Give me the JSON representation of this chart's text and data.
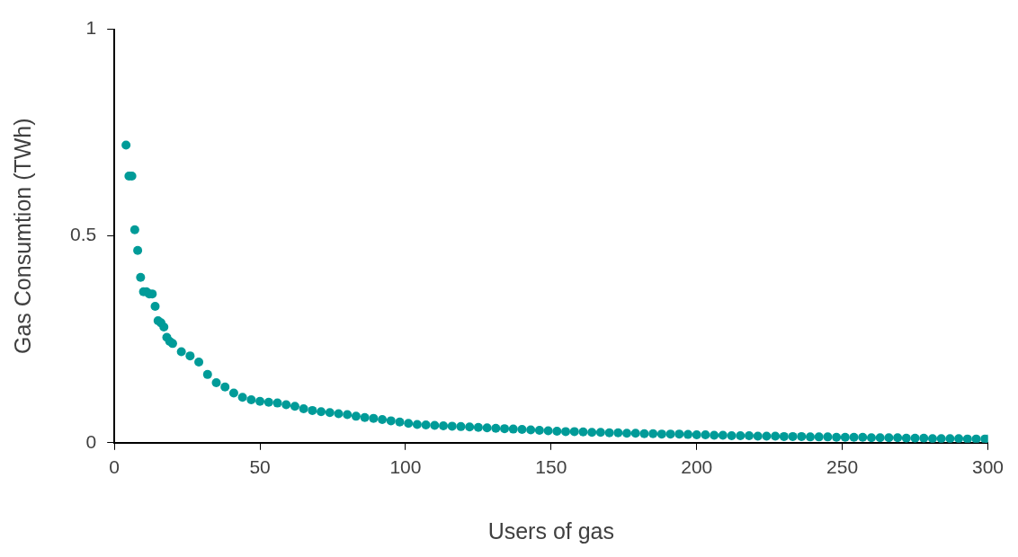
{
  "chart_data": {
    "type": "scatter",
    "xlabel": "Users of gas",
    "ylabel": "Gas Consumtion (TWh)",
    "xlim": [
      0,
      300
    ],
    "xticks": [
      0,
      50,
      100,
      150,
      200,
      250,
      300
    ],
    "ylim": [
      0,
      1
    ],
    "yticks": [
      0,
      0.5,
      1
    ],
    "grid": false,
    "legend": false,
    "marker": "circle",
    "series": [
      {
        "color": "#009b98",
        "x": [
          4,
          5,
          6,
          7,
          8,
          9,
          10,
          11,
          12,
          13,
          14,
          15,
          16,
          17,
          18,
          19,
          20,
          23,
          26,
          29,
          32,
          35,
          38,
          41,
          44,
          47,
          50,
          53,
          56,
          59,
          62,
          65,
          68,
          71,
          74,
          77,
          80,
          83,
          86,
          89,
          92,
          95,
          98,
          101,
          104,
          107,
          110,
          113,
          116,
          119,
          122,
          125,
          128,
          131,
          134,
          137,
          140,
          143,
          146,
          149,
          152,
          155,
          158,
          161,
          164,
          167,
          170,
          173,
          176,
          179,
          182,
          185,
          188,
          191,
          194,
          197,
          200,
          203,
          206,
          209,
          212,
          215,
          218,
          221,
          224,
          227,
          230,
          233,
          236,
          239,
          242,
          245,
          248,
          251,
          254,
          257,
          260,
          263,
          266,
          269,
          272,
          275,
          278,
          281,
          284,
          287,
          290,
          293,
          296,
          299,
          300
        ],
        "values": [
          0.72,
          0.645,
          0.645,
          0.515,
          0.465,
          0.4,
          0.365,
          0.365,
          0.36,
          0.36,
          0.33,
          0.295,
          0.29,
          0.28,
          0.255,
          0.245,
          0.24,
          0.22,
          0.21,
          0.195,
          0.165,
          0.145,
          0.135,
          0.12,
          0.11,
          0.104,
          0.1,
          0.098,
          0.096,
          0.092,
          0.088,
          0.082,
          0.078,
          0.075,
          0.073,
          0.07,
          0.068,
          0.064,
          0.061,
          0.059,
          0.056,
          0.053,
          0.05,
          0.047,
          0.044,
          0.043,
          0.042,
          0.041,
          0.04,
          0.039,
          0.038,
          0.037,
          0.036,
          0.035,
          0.034,
          0.033,
          0.032,
          0.031,
          0.03,
          0.029,
          0.028,
          0.027,
          0.027,
          0.026,
          0.025,
          0.025,
          0.024,
          0.024,
          0.023,
          0.023,
          0.022,
          0.022,
          0.021,
          0.021,
          0.021,
          0.02,
          0.019,
          0.019,
          0.018,
          0.018,
          0.017,
          0.017,
          0.017,
          0.016,
          0.016,
          0.016,
          0.015,
          0.015,
          0.015,
          0.014,
          0.014,
          0.014,
          0.013,
          0.013,
          0.013,
          0.013,
          0.012,
          0.012,
          0.012,
          0.012,
          0.011,
          0.011,
          0.011,
          0.01,
          0.01,
          0.01,
          0.01,
          0.009,
          0.009,
          0.009,
          0.009
        ]
      }
    ]
  }
}
